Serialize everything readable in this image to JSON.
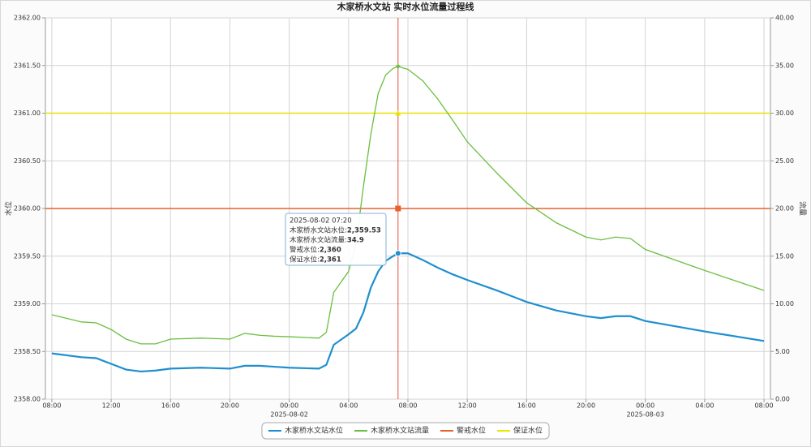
{
  "chart_data": {
    "type": "line",
    "title": "木家桥水文站 实时水位流量过程线",
    "y_label": "水位",
    "y2_label": "流量",
    "x": [
      "2025-08-01 08:00",
      "2025-08-01 10:00",
      "2025-08-01 11:00",
      "2025-08-01 12:00",
      "2025-08-01 13:00",
      "2025-08-01 14:00",
      "2025-08-01 15:00",
      "2025-08-01 16:00",
      "2025-08-01 18:00",
      "2025-08-01 20:00",
      "2025-08-01 21:00",
      "2025-08-01 22:00",
      "2025-08-01 23:00",
      "2025-08-02 00:00",
      "2025-08-02 02:00",
      "2025-08-02 02:30",
      "2025-08-02 03:00",
      "2025-08-02 04:00",
      "2025-08-02 04:30",
      "2025-08-02 05:00",
      "2025-08-02 05:30",
      "2025-08-02 06:00",
      "2025-08-02 06:30",
      "2025-08-02 07:00",
      "2025-08-02 07:20",
      "2025-08-02 08:00",
      "2025-08-02 09:00",
      "2025-08-02 10:00",
      "2025-08-02 11:00",
      "2025-08-02 12:00",
      "2025-08-02 14:00",
      "2025-08-02 16:00",
      "2025-08-02 18:00",
      "2025-08-02 20:00",
      "2025-08-02 21:00",
      "2025-08-02 22:00",
      "2025-08-02 23:00",
      "2025-08-03 00:00",
      "2025-08-03 04:00",
      "2025-08-03 08:00"
    ],
    "series": [
      {
        "name": "木家桥水文站水位",
        "color": "#1f8fcf",
        "values": [
          2358.48,
          2358.44,
          2358.43,
          2358.37,
          2358.31,
          2358.29,
          2358.3,
          2358.32,
          2358.33,
          2358.32,
          2358.35,
          2358.35,
          2358.34,
          2358.33,
          2358.32,
          2358.36,
          2358.57,
          2358.68,
          2358.74,
          2358.91,
          2359.17,
          2359.34,
          2359.45,
          2359.5,
          2359.53,
          2359.53,
          2359.46,
          2359.38,
          2359.31,
          2359.25,
          2359.14,
          2359.02,
          2358.93,
          2358.87,
          2358.85,
          2358.87,
          2358.87,
          2358.82,
          2358.71,
          2358.61
        ]
      },
      {
        "name": "木家桥水文站流量",
        "color": "#6abf40",
        "axis": "y2",
        "values": [
          8.85,
          8.1,
          8.0,
          7.3,
          6.3,
          5.8,
          5.8,
          6.3,
          6.4,
          6.3,
          6.9,
          6.7,
          6.6,
          6.55,
          6.4,
          7.0,
          11.2,
          13.4,
          16.3,
          22.3,
          27.8,
          32.1,
          34.0,
          34.7,
          34.9,
          34.6,
          33.4,
          31.5,
          29.3,
          27.0,
          23.7,
          20.6,
          18.5,
          17.0,
          16.7,
          17.0,
          16.85,
          15.7,
          13.5,
          11.4
        ]
      }
    ],
    "hlines": [
      {
        "name": "警戒水位",
        "color": "#e8602c",
        "value": 2360
      },
      {
        "name": "保证水位",
        "color": "#e6e600",
        "value": 2361
      }
    ],
    "xlim": [
      "2025-08-01 07:34",
      "2025-08-03 08:26"
    ],
    "xticks": [
      {
        "value": "2025-08-01 08:00",
        "label": "08:00"
      },
      {
        "value": "2025-08-01 12:00",
        "label": "12:00"
      },
      {
        "value": "2025-08-01 16:00",
        "label": "16:00"
      },
      {
        "value": "2025-08-01 20:00",
        "label": "20:00"
      },
      {
        "value": "2025-08-02 00:00",
        "label": "00:00"
      },
      {
        "value": "2025-08-02 04:00",
        "label": "04:00"
      },
      {
        "value": "2025-08-02 08:00",
        "label": "08:00"
      },
      {
        "value": "2025-08-02 12:00",
        "label": "12:00"
      },
      {
        "value": "2025-08-02 16:00",
        "label": "16:00"
      },
      {
        "value": "2025-08-02 20:00",
        "label": "20:00"
      },
      {
        "value": "2025-08-03 00:00",
        "label": "00:00"
      },
      {
        "value": "2025-08-03 04:00",
        "label": "04:00"
      },
      {
        "value": "2025-08-03 08:00",
        "label": "08:00"
      }
    ],
    "x_date_labels": [
      {
        "value": "2025-08-02 00:00",
        "label": "2025-08-02"
      },
      {
        "value": "2025-08-03 00:00",
        "label": "2025-08-03"
      }
    ],
    "ylim": [
      2358,
      2362
    ],
    "yticks": [
      {
        "value": 2358,
        "label": "2358.00"
      },
      {
        "value": 2358.5,
        "label": "2358.50"
      },
      {
        "value": 2359,
        "label": "2359.00"
      },
      {
        "value": 2359.5,
        "label": "2359.50"
      },
      {
        "value": 2360,
        "label": "2360.00"
      },
      {
        "value": 2360.5,
        "label": "2360.50"
      },
      {
        "value": 2361,
        "label": "2361.00"
      },
      {
        "value": 2361.5,
        "label": "2361.50"
      },
      {
        "value": 2362,
        "label": "2362.00"
      }
    ],
    "y2lim": [
      0,
      40
    ],
    "y2ticks": [
      {
        "value": 0,
        "label": "0.00"
      },
      {
        "value": 5,
        "label": "5.00"
      },
      {
        "value": 10,
        "label": "10.00"
      },
      {
        "value": 15,
        "label": "15.00"
      },
      {
        "value": 20,
        "label": "20.00"
      },
      {
        "value": 25,
        "label": "25.00"
      },
      {
        "value": 30,
        "label": "30.00"
      },
      {
        "value": 35,
        "label": "35.00"
      },
      {
        "value": 40,
        "label": "40.00"
      }
    ],
    "grid": true,
    "legend": "bottom",
    "tooltip": {
      "x": "2025-08-02 07:20",
      "rows": [
        {
          "text": "木家桥水文站水位: ",
          "value": 2359.53,
          "value_label": "2,359.53"
        },
        {
          "text": "木家桥水文站流量: ",
          "value": 34.9,
          "value_label": "34.9"
        },
        {
          "text": "警戒水位: ",
          "value": 2360,
          "value_label": "2,360"
        },
        {
          "text": "保证水位: ",
          "value": 2361,
          "value_label": "2,361"
        }
      ]
    }
  }
}
